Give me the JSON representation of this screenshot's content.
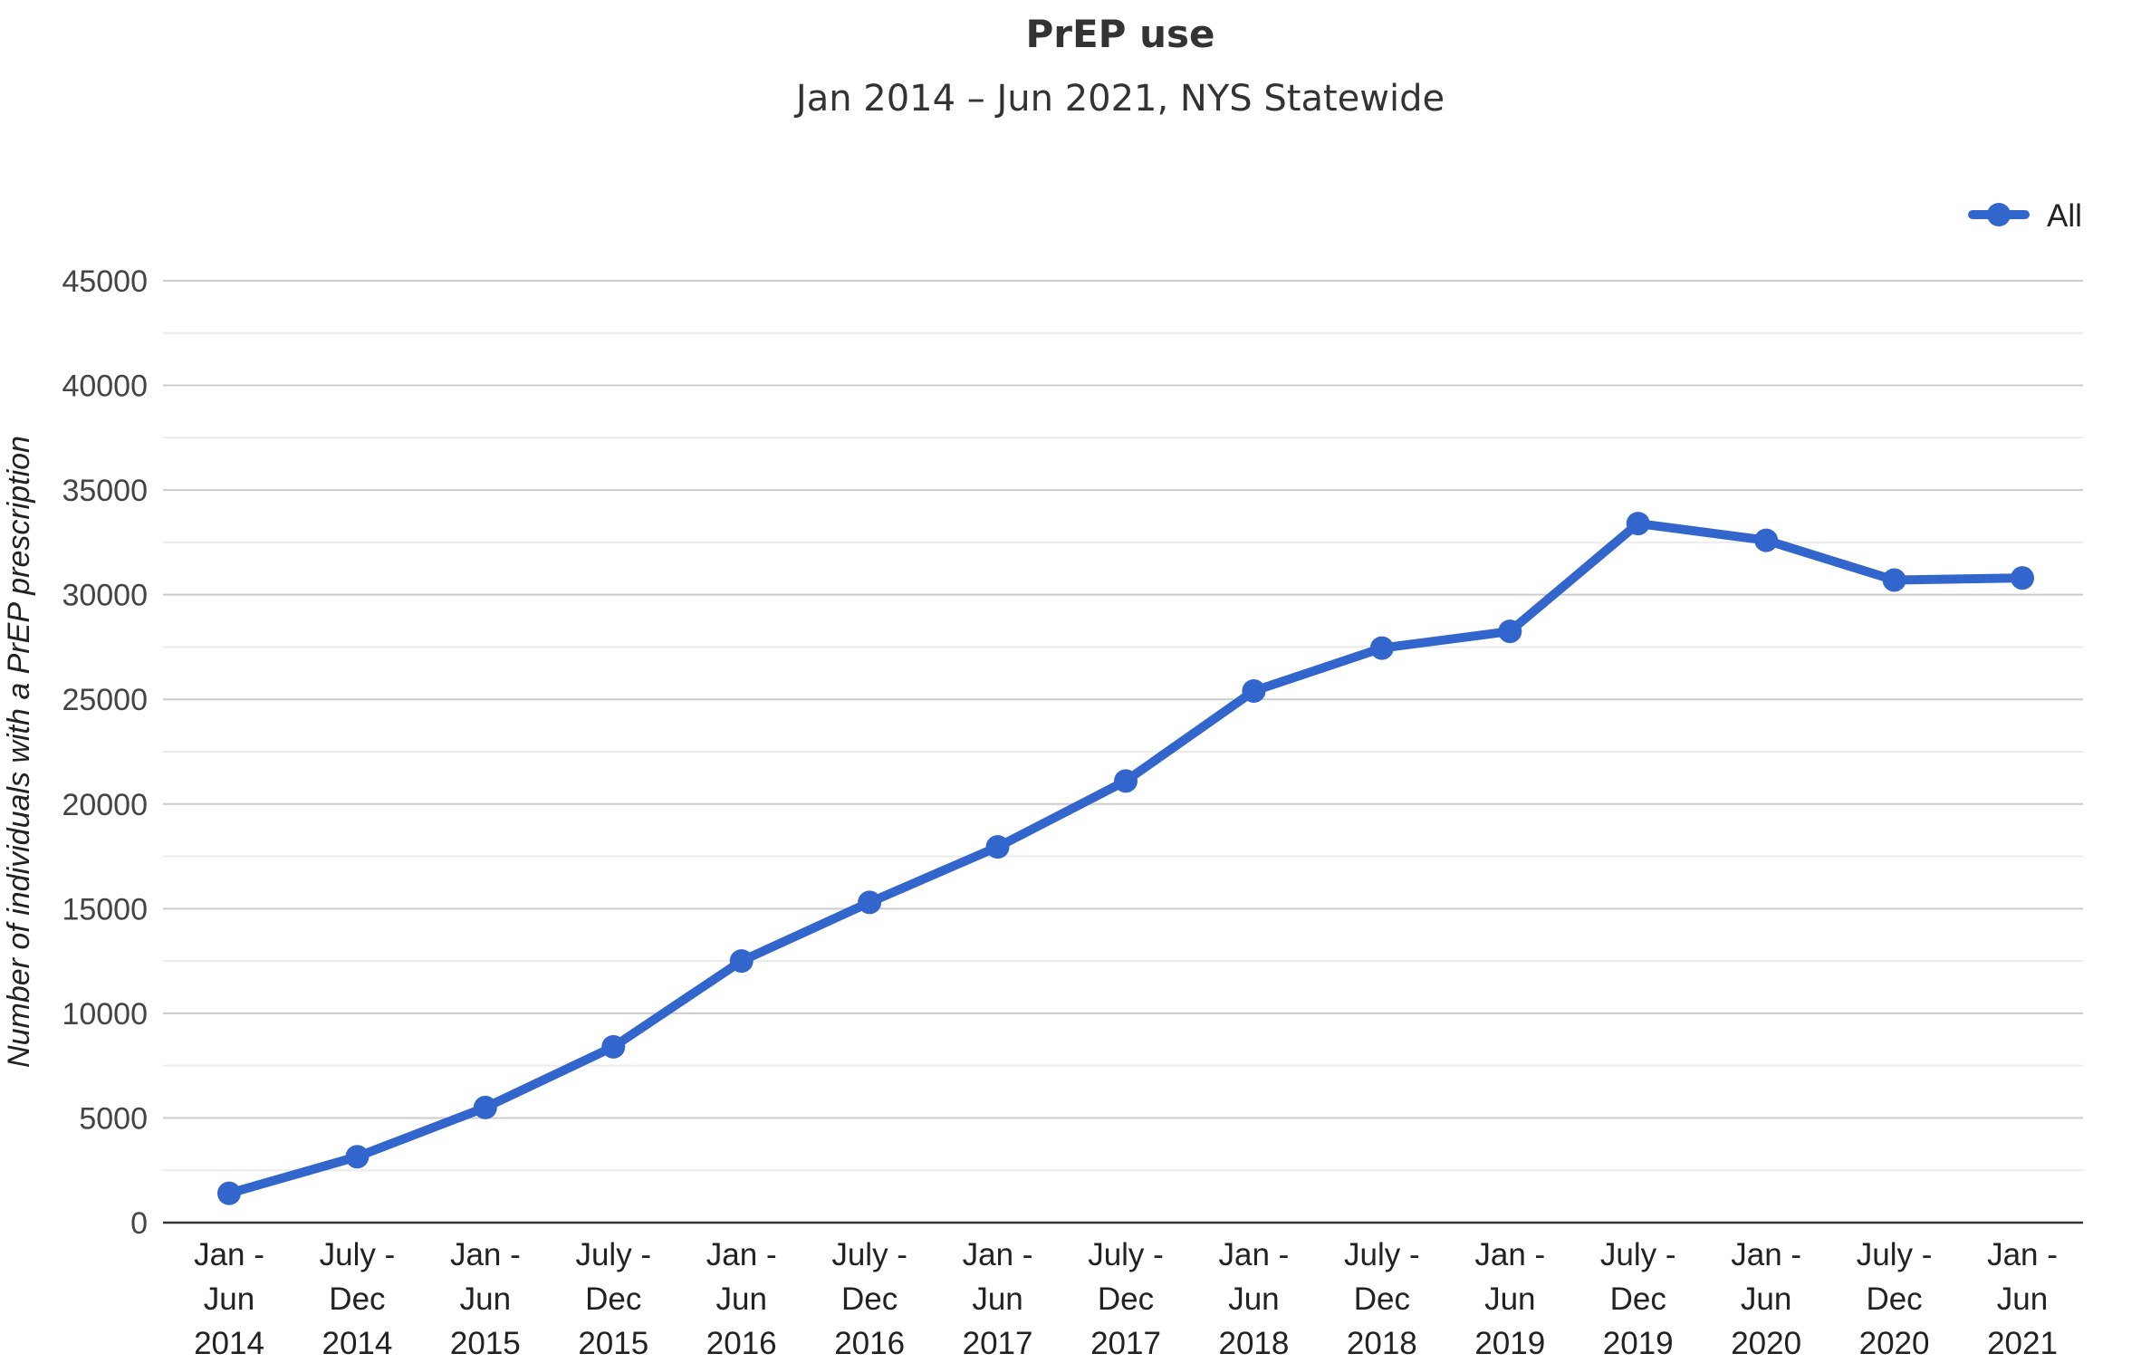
{
  "chart_data": {
    "type": "line",
    "title": "PrEP use",
    "subtitle": "Jan 2014 – Jun 2021, NYS Statewide",
    "xlabel": "",
    "ylabel": "Number of individuals with a PrEP prescription",
    "categories": [
      [
        "Jan -",
        "Jun",
        "2014"
      ],
      [
        "July -",
        "Dec",
        "2014"
      ],
      [
        "Jan -",
        "Jun",
        "2015"
      ],
      [
        "July -",
        "Dec",
        "2015"
      ],
      [
        "Jan -",
        "Jun",
        "2016"
      ],
      [
        "July -",
        "Dec",
        "2016"
      ],
      [
        "Jan -",
        "Jun",
        "2017"
      ],
      [
        "July -",
        "Dec",
        "2017"
      ],
      [
        "Jan -",
        "Jun",
        "2018"
      ],
      [
        "July -",
        "Dec",
        "2018"
      ],
      [
        "Jan -",
        "Jun",
        "2019"
      ],
      [
        "July -",
        "Dec",
        "2019"
      ],
      [
        "Jan -",
        "Jun",
        "2020"
      ],
      [
        "July -",
        "Dec",
        "2020"
      ],
      [
        "Jan -",
        "Jun",
        "2021"
      ]
    ],
    "series": [
      {
        "name": "All",
        "color": "#3366cc",
        "values": [
          1400,
          3150,
          5500,
          8400,
          12500,
          15300,
          17950,
          21100,
          25400,
          27450,
          28250,
          33400,
          32600,
          30700,
          30800
        ]
      }
    ],
    "yticks": [
      0,
      5000,
      10000,
      15000,
      20000,
      25000,
      30000,
      35000,
      40000,
      45000
    ],
    "ylim": [
      0,
      45000
    ],
    "grid": true,
    "legend": {
      "position": "top-right",
      "label": "All"
    }
  }
}
